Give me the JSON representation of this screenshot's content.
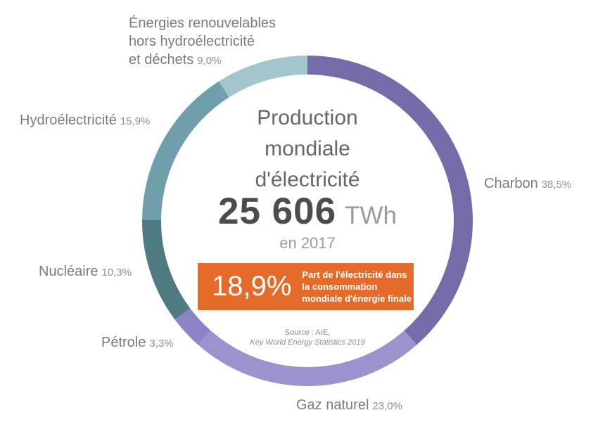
{
  "chart_data": {
    "type": "pie",
    "subtype": "donut",
    "title": "Production mondiale d'électricité",
    "total_value": "25 606",
    "total_unit": "TWh",
    "year_label": "en 2017",
    "start_angle_deg": 0,
    "direction": "clockwise",
    "segments": [
      {
        "label": "Charbon",
        "pct_label": "38,5%",
        "value": 38.5,
        "color": "#726da9"
      },
      {
        "label": "Gaz naturel",
        "pct_label": "23,0%",
        "value": 23.0,
        "color": "#9a94ce"
      },
      {
        "label": "Pétrole",
        "pct_label": "3,3%",
        "value": 3.3,
        "color": "#8b83c3"
      },
      {
        "label": "Nucléaire",
        "pct_label": "10,3%",
        "value": 10.3,
        "color": "#4f7a81"
      },
      {
        "label": "Hydroélectricité",
        "pct_label": "15,9%",
        "value": 15.9,
        "color": "#6f9fab"
      },
      {
        "label": "Énergies renouvelables hors hydroélectricité et déchets",
        "pct_label": "9,0%",
        "value": 9.0,
        "color": "#a3c6ce"
      }
    ]
  },
  "labels": {
    "renewables": {
      "line1": "Énergies renouvelables",
      "line2": "hors hydroélectricité",
      "line3": "et déchets"
    }
  },
  "callout": {
    "pct": "18,9%",
    "description": "Part de l'électricité dans la consommation mondiale d'énergie finale",
    "color": "#e46b29"
  },
  "source": {
    "line1": "Source : AIE,",
    "line2": "Key World Energy Statistics 2019"
  }
}
